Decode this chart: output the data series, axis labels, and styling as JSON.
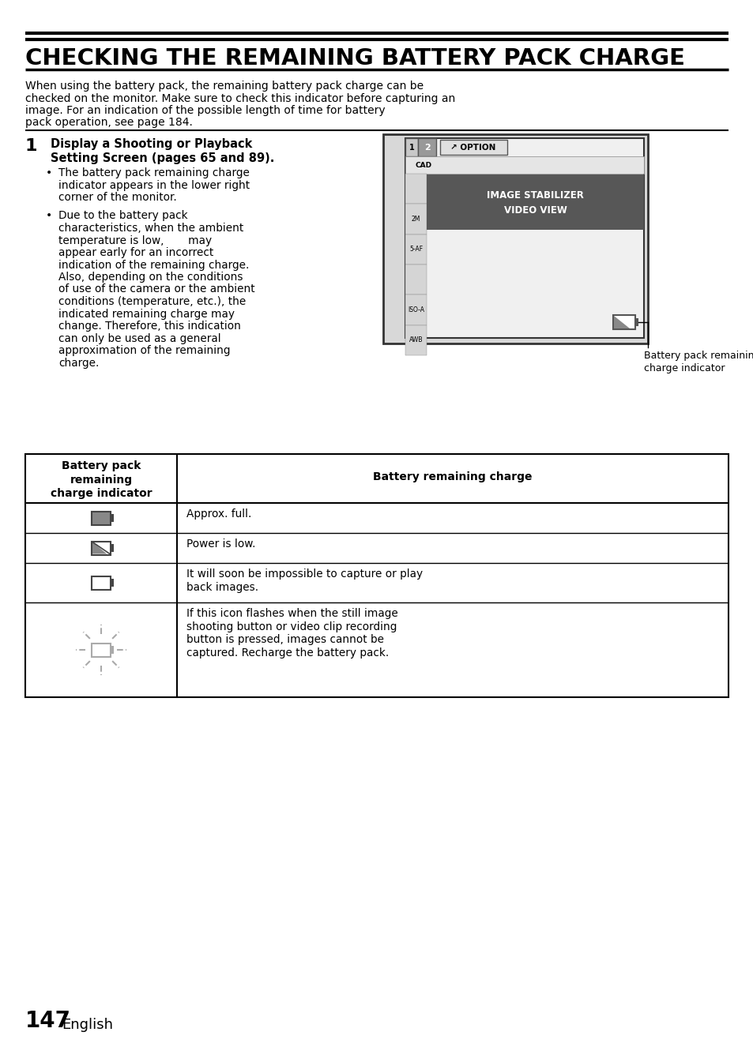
{
  "title": "CHECKING THE REMAINING BATTERY PACK CHARGE",
  "intro_lines": [
    "When using the battery pack, the remaining battery pack charge can be",
    "checked on the monitor. Make sure to check this indicator before capturing an",
    "image. For an indication of the possible length of time for battery",
    "pack operation, see page 184."
  ],
  "step_number": "1",
  "step_title_line1": "Display a Shooting or Playback",
  "step_title_line2": "Setting Screen (pages 65 and 89).",
  "b1_lines": [
    "The battery pack remaining charge",
    "indicator appears in the lower right",
    "corner of the monitor."
  ],
  "b2_lines": [
    "Due to the battery pack",
    "characteristics, when the ambient",
    "temperature is low,       may",
    "appear early for an incorrect",
    "indication of the remaining charge.",
    "Also, depending on the conditions",
    "of use of the camera or the ambient",
    "conditions (temperature, etc.), the",
    "indicated remaining charge may",
    "change. Therefore, this indication",
    "can only be used as a general",
    "approximation of the remaining",
    "charge."
  ],
  "cam_label_line1": "Battery pack remaining –",
  "cam_label_line2": "charge indicator",
  "table_col1_header": [
    "Battery pack",
    "remaining",
    "charge indicator"
  ],
  "table_col2_header": "Battery remaining charge",
  "row1_text": "Approx. full.",
  "row2_text": "Power is low.",
  "row3_text": [
    "It will soon be impossible to capture or play",
    "back images."
  ],
  "row4_text": [
    "If this icon flashes when the still image",
    "shooting button or video clip recording",
    "button is pressed, images cannot be",
    "captured. Recharge the battery pack."
  ],
  "footer_num": "147",
  "footer_word": "English",
  "bg_color": "#ffffff",
  "text_color": "#000000"
}
